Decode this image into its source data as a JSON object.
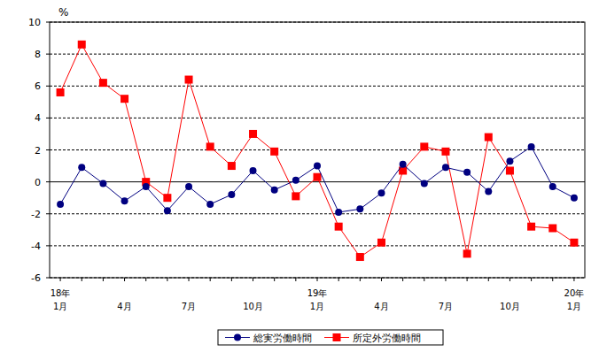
{
  "chart_data": {
    "type": "line",
    "y_label": "%",
    "categories": [
      "18年\n1月",
      null,
      null,
      "4月",
      null,
      null,
      "7月",
      null,
      null,
      "10月",
      null,
      null,
      "19年\n1月",
      null,
      null,
      "4月",
      null,
      null,
      "7月",
      null,
      null,
      "10月",
      null,
      null,
      "20年\n1月"
    ],
    "series": [
      {
        "name": "総実労働時間",
        "color": "#000080",
        "marker": "circle",
        "values": [
          -1.4,
          0.9,
          -0.1,
          -1.2,
          -0.3,
          -1.8,
          -0.3,
          -1.4,
          -0.8,
          0.7,
          -0.5,
          0.1,
          1.0,
          -1.9,
          -1.7,
          -0.7,
          1.1,
          -0.1,
          0.9,
          0.6,
          -0.6,
          1.3,
          2.2,
          -0.3,
          -1.0
        ]
      },
      {
        "name": "所定外労働時間",
        "color": "#ff0000",
        "marker": "square",
        "values": [
          5.6,
          8.6,
          6.2,
          5.2,
          0.0,
          -1.0,
          6.4,
          2.2,
          1.0,
          3.0,
          1.9,
          -0.9,
          0.3,
          -2.8,
          -4.7,
          -3.8,
          0.7,
          2.2,
          1.9,
          -4.5,
          2.8,
          0.7,
          -2.8,
          -2.9,
          -3.8
        ]
      }
    ],
    "ylim": [
      -6,
      10
    ],
    "yticks": [
      -6,
      -4,
      -2,
      0,
      2,
      4,
      6,
      8,
      10
    ],
    "grid": true,
    "legend": "bottom"
  }
}
